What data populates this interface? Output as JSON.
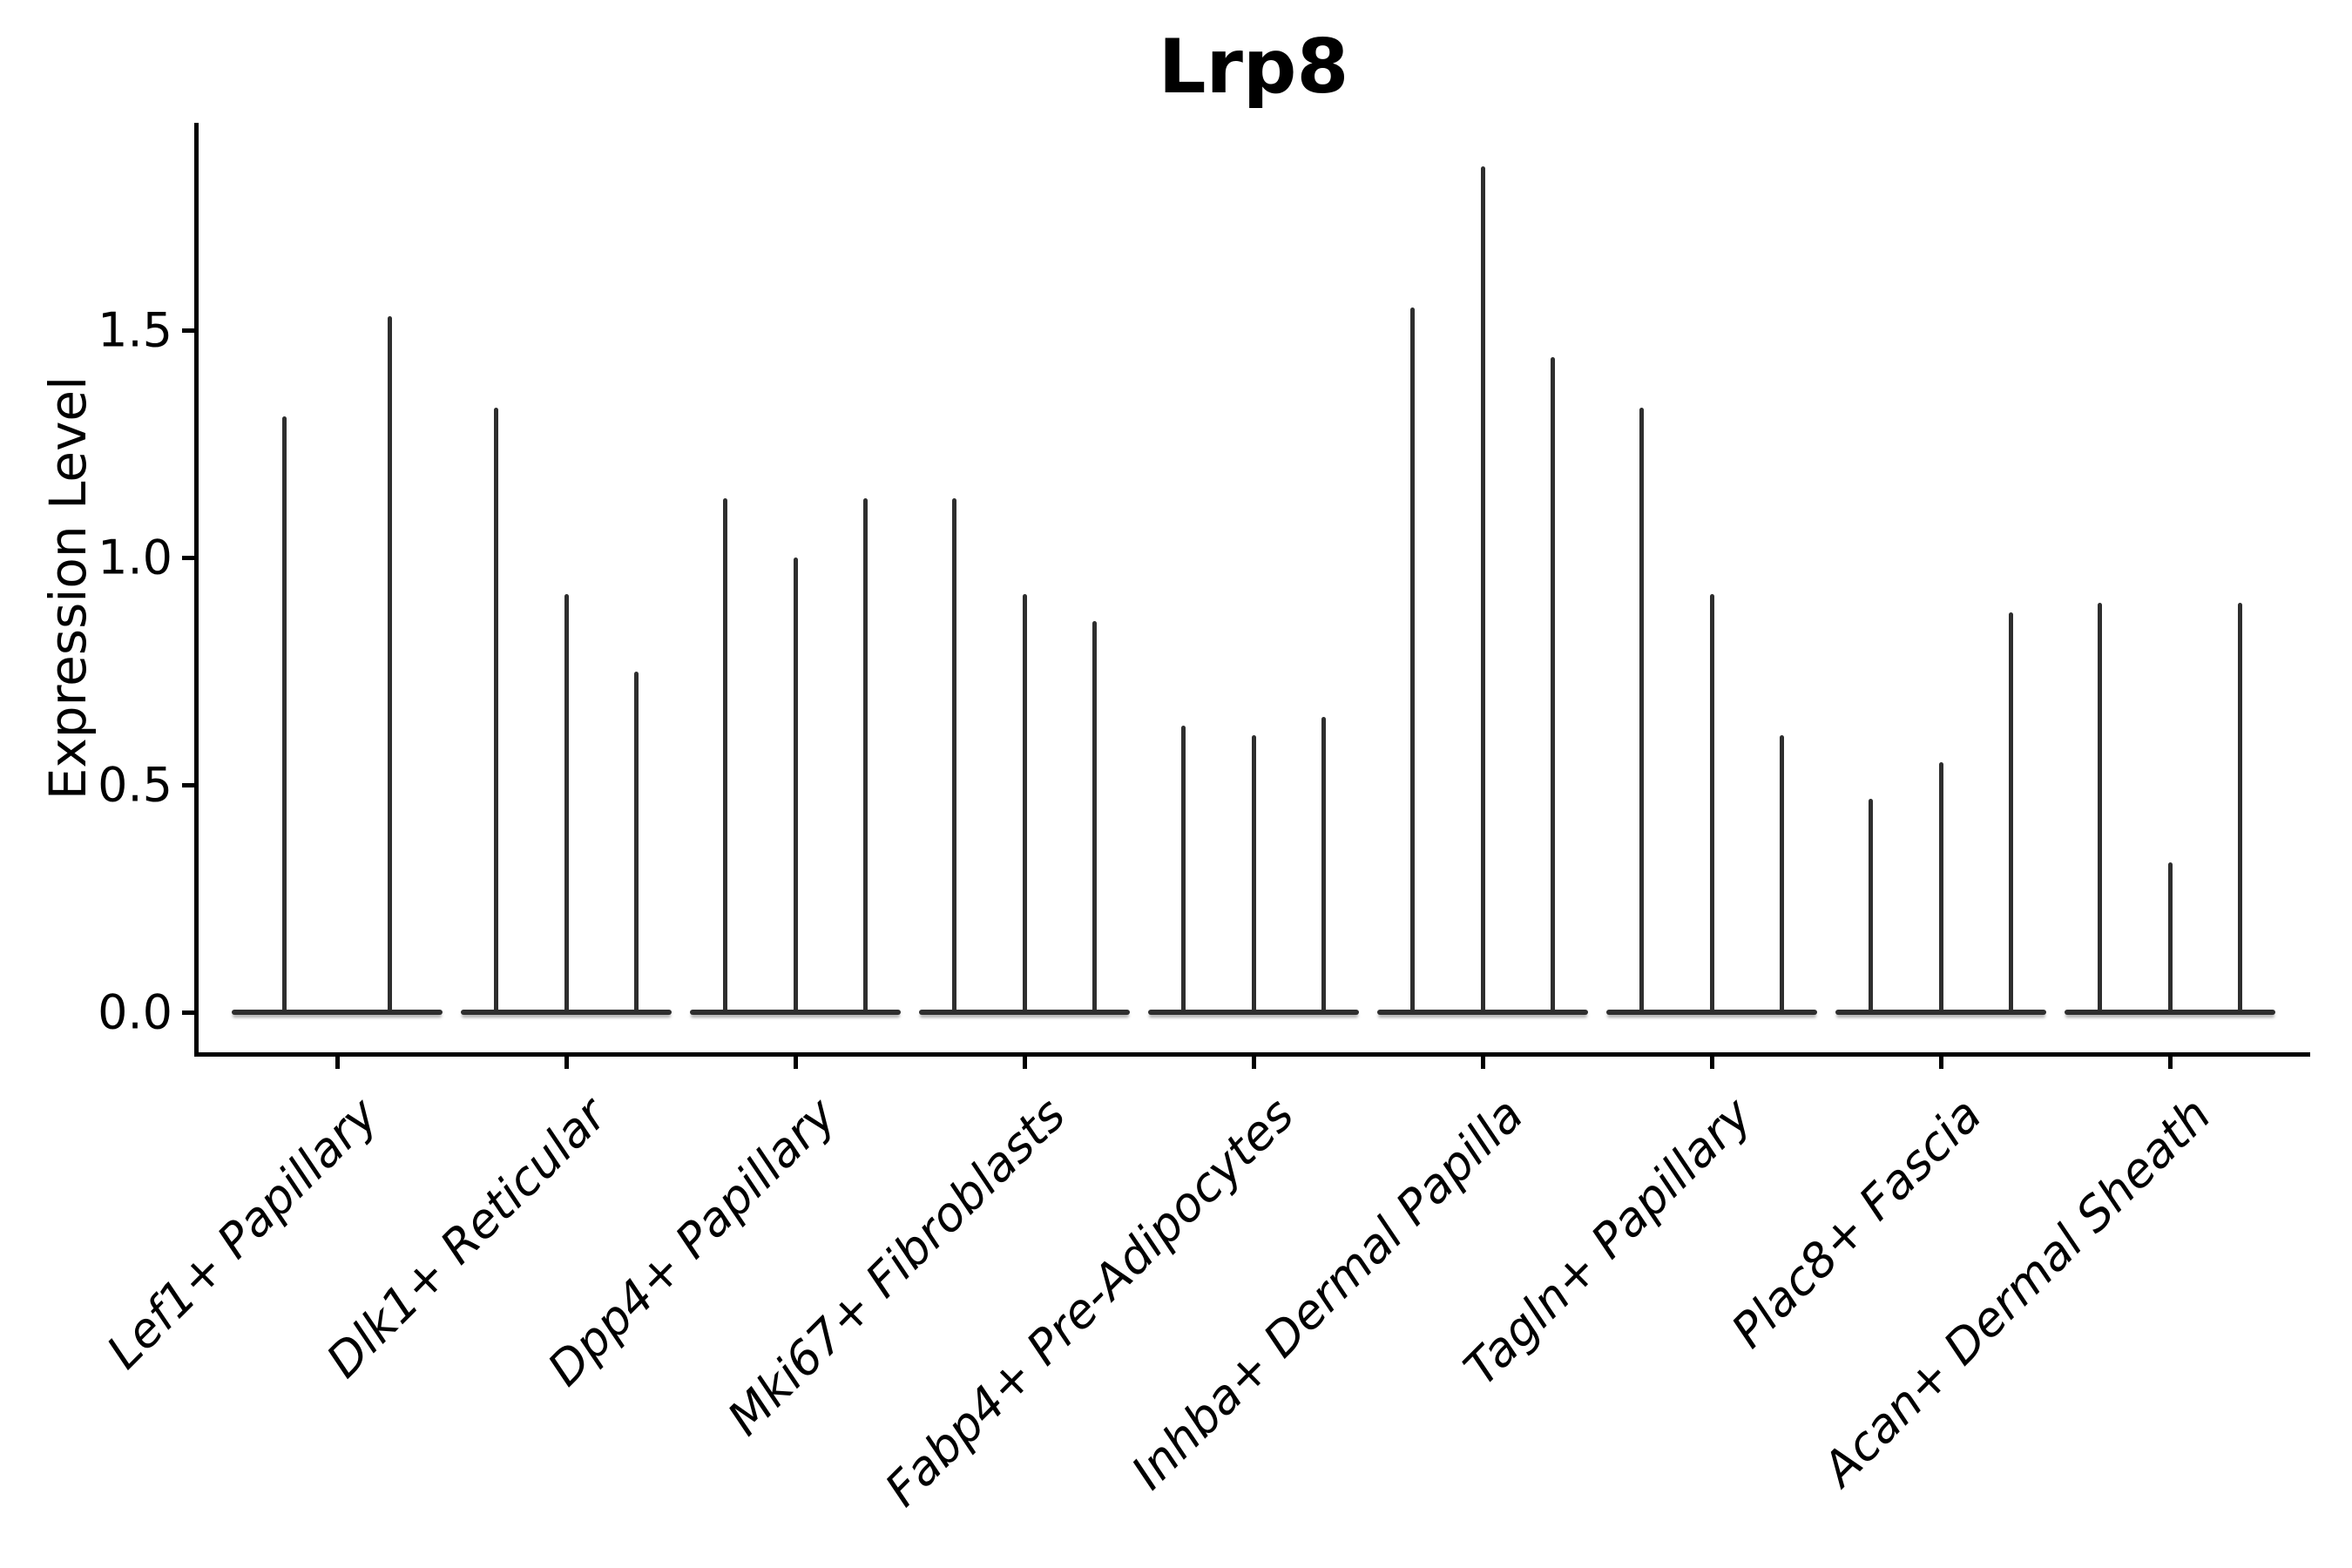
{
  "chart_data": {
    "type": "violin",
    "title": "Lrp8",
    "ylabel": "Expression Level",
    "xlabel": "",
    "grid": false,
    "legend": false,
    "orientation": "vertical",
    "ylim": [
      -0.09,
      1.96
    ],
    "ytick_values": [
      0.0,
      0.5,
      1.0,
      1.5
    ],
    "ytick_labels": [
      "0.0",
      "0.5",
      "1.0",
      "1.5"
    ],
    "line_color": "#2e2e2e",
    "axis_color": "#000000",
    "description": "Needle-thin violin plots of gene expression; each category holds 2-3 violins collapsed to a flat body at 0 with a thin spike up to the max expression value.",
    "categories": [
      "Lef1+ Papillary",
      "Dlk1+ Reticular",
      "Dpp4+ Papillary",
      "Mki67+ Fibroblasts",
      "Fabp4+ Pre-Adipocytes",
      "Inhba+ Dermal Papilla",
      "Tagln+ Papillary",
      "Plac8+ Fascia",
      "Acan+ Dermal Sheath"
    ],
    "groups": [
      {
        "category": "Lef1+ Papillary",
        "violin_max_values": [
          1.31,
          1.53
        ]
      },
      {
        "category": "Dlk1+ Reticular",
        "violin_max_values": [
          1.33,
          0.92,
          0.75
        ]
      },
      {
        "category": "Dpp4+ Papillary",
        "violin_max_values": [
          1.13,
          1.0,
          1.13
        ]
      },
      {
        "category": "Mki67+ Fibroblasts",
        "violin_max_values": [
          1.13,
          0.92,
          0.86
        ]
      },
      {
        "category": "Fabp4+ Pre-Adipocytes",
        "violin_max_values": [
          0.63,
          0.61,
          0.65
        ]
      },
      {
        "category": "Inhba+ Dermal Papilla",
        "violin_max_values": [
          1.55,
          1.86,
          1.44
        ]
      },
      {
        "category": "Tagln+ Papillary",
        "violin_max_values": [
          1.33,
          0.92,
          0.61
        ]
      },
      {
        "category": "Plac8+ Fascia",
        "violin_max_values": [
          0.47,
          0.55,
          0.88
        ]
      },
      {
        "category": "Acan+ Dermal Sheath",
        "violin_max_values": [
          0.9,
          0.33,
          0.9
        ]
      }
    ]
  }
}
